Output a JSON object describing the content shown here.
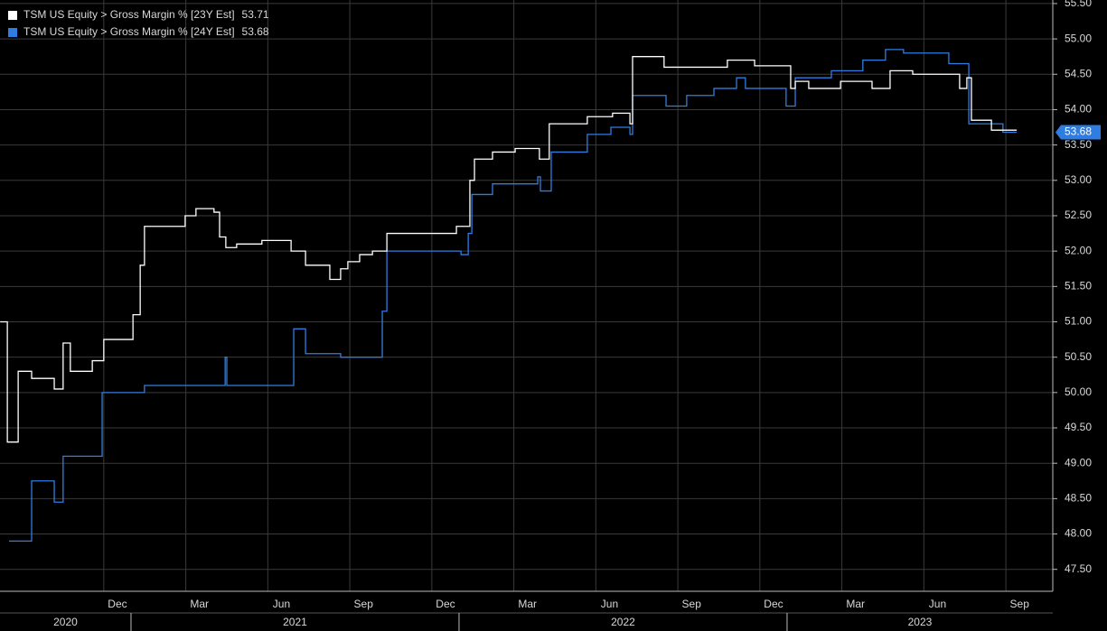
{
  "chart_data": {
    "type": "line",
    "step": "post",
    "series": [
      {
        "name": "TSM US Equity > Gross Margin % [23Y Est]",
        "color": "#ffffff",
        "x": [
          2020.601,
          2020.623,
          2020.656,
          2020.697,
          2020.766,
          2020.793,
          2020.815,
          2020.882,
          2020.917,
          2021.006,
          2021.028,
          2021.041,
          2021.165,
          2021.198,
          2021.253,
          2021.27,
          2021.289,
          2021.322,
          2021.399,
          2021.488,
          2021.532,
          2021.606,
          2021.639,
          2021.661,
          2021.697,
          2021.736,
          2021.78,
          2021.992,
          2022.033,
          2022.047,
          2022.102,
          2022.171,
          2022.245,
          2022.275,
          2022.391,
          2022.468,
          2022.521,
          2022.529,
          2022.625,
          2022.818,
          2022.901,
          2023.011,
          2023.025,
          2023.066,
          2023.163,
          2023.259,
          2023.314,
          2023.383,
          2023.526,
          2023.548,
          2023.562,
          2023.623,
          2023.7
        ],
        "values": [
          51.0,
          49.3,
          50.3,
          50.2,
          50.05,
          50.7,
          50.3,
          50.45,
          50.75,
          51.1,
          51.8,
          52.35,
          52.5,
          52.6,
          52.55,
          52.2,
          52.05,
          52.1,
          52.15,
          52.0,
          51.8,
          51.6,
          51.75,
          51.85,
          51.95,
          52.0,
          52.25,
          52.35,
          53.0,
          53.3,
          53.4,
          53.45,
          53.3,
          53.8,
          53.9,
          53.95,
          53.8,
          54.75,
          54.6,
          54.7,
          54.62,
          54.3,
          54.4,
          54.3,
          54.4,
          54.3,
          54.55,
          54.5,
          54.3,
          54.45,
          53.85,
          53.71,
          53.71
        ]
      },
      {
        "name": "TSM US Equity > Gross Margin % [24Y Est]",
        "color": "#2f7de1",
        "x": [
          2020.628,
          2020.697,
          2020.766,
          2020.793,
          2020.912,
          2021.041,
          2021.287,
          2021.292,
          2021.496,
          2021.532,
          2021.639,
          2021.766,
          2021.78,
          2022.006,
          2022.028,
          2022.039,
          2022.102,
          2022.24,
          2022.248,
          2022.281,
          2022.391,
          2022.463,
          2022.521,
          2022.529,
          2022.631,
          2022.694,
          2022.777,
          2022.846,
          2022.873,
          2022.997,
          2023.025,
          2023.135,
          2023.231,
          2023.3,
          2023.355,
          2023.493,
          2023.554,
          2023.658,
          2023.7
        ],
        "values": [
          47.9,
          48.75,
          48.45,
          49.1,
          50.0,
          50.1,
          50.5,
          50.1,
          50.9,
          50.55,
          50.5,
          51.15,
          52.0,
          51.95,
          52.25,
          52.8,
          52.95,
          53.05,
          52.85,
          53.4,
          53.65,
          53.75,
          53.65,
          54.2,
          54.05,
          54.2,
          54.3,
          54.45,
          54.3,
          54.05,
          54.45,
          54.55,
          54.7,
          54.85,
          54.8,
          54.65,
          53.8,
          53.68,
          53.68
        ]
      }
    ],
    "xlim": [
      2020.6006,
      2023.81
    ],
    "xticks": [
      {
        "value": 2020.917,
        "label": "Dec"
      },
      {
        "value": 2021.167,
        "label": "Mar"
      },
      {
        "value": 2021.417,
        "label": "Jun"
      },
      {
        "value": 2021.667,
        "label": "Sep"
      },
      {
        "value": 2021.917,
        "label": "Dec"
      },
      {
        "value": 2022.167,
        "label": "Mar"
      },
      {
        "value": 2022.417,
        "label": "Jun"
      },
      {
        "value": 2022.667,
        "label": "Sep"
      },
      {
        "value": 2022.917,
        "label": "Dec"
      },
      {
        "value": 2023.167,
        "label": "Mar"
      },
      {
        "value": 2023.417,
        "label": "Jun"
      },
      {
        "value": 2023.667,
        "label": "Sep"
      }
    ],
    "year_ticks": [
      2020,
      2021,
      2022,
      2023
    ],
    "ylim": [
      47.19,
      55.55
    ],
    "yticks": [
      {
        "value": 47.5,
        "label": "47.50"
      },
      {
        "value": 48,
        "label": "48.00"
      },
      {
        "value": 48.5,
        "label": "48.50"
      },
      {
        "value": 49,
        "label": "49.00"
      },
      {
        "value": 49.5,
        "label": "49.50"
      },
      {
        "value": 50,
        "label": "50.00"
      },
      {
        "value": 50.5,
        "label": "50.50"
      },
      {
        "value": 51,
        "label": "51.00"
      },
      {
        "value": 51.5,
        "label": "51.50"
      },
      {
        "value": 52,
        "label": "52.00"
      },
      {
        "value": 52.5,
        "label": "52.50"
      },
      {
        "value": 53,
        "label": "53.00"
      },
      {
        "value": 53.5,
        "label": "53.50"
      },
      {
        "value": 54,
        "label": "54.00"
      },
      {
        "value": 54.5,
        "label": "54.50"
      },
      {
        "value": 55,
        "label": "55.00"
      },
      {
        "value": 55.5,
        "label": "55.50"
      }
    ],
    "grid": true
  }
}
